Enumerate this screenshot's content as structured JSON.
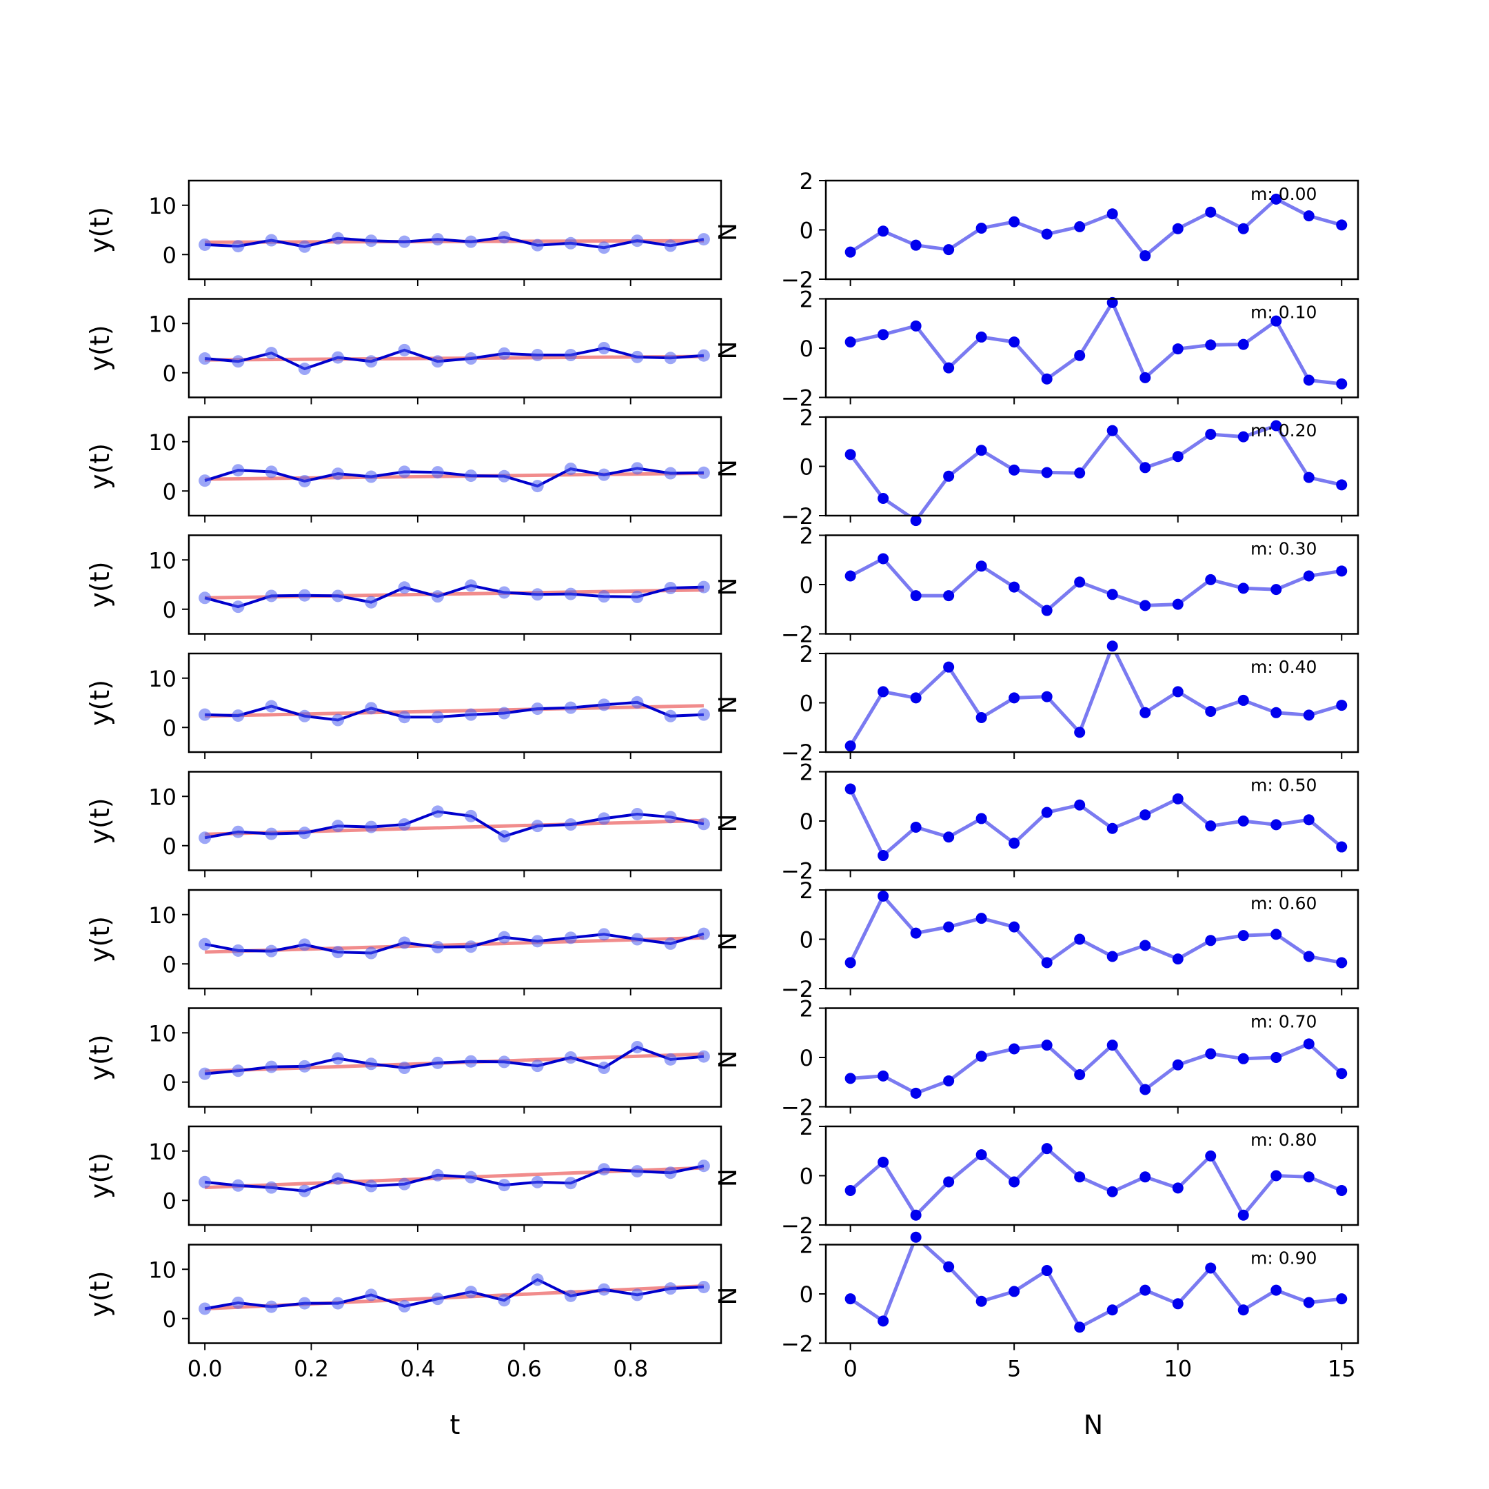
{
  "chart_data": {
    "type": "line",
    "layout": "10 rows x 2 columns of line/scatter subplots",
    "left": {
      "xlabel": "t",
      "ylabel": "y(t)",
      "xlim": [
        -0.03,
        0.97
      ],
      "ylim": [
        -5,
        15
      ],
      "xticks": [
        "0.0",
        "0.2",
        "0.4",
        "0.6",
        "0.8"
      ],
      "xtick_values": [
        0.0,
        0.2,
        0.4,
        0.6,
        0.8
      ],
      "yticks": [
        "0",
        "10"
      ],
      "ytick_values": [
        0,
        10
      ],
      "x": [
        0,
        0.0625,
        0.125,
        0.1875,
        0.25,
        0.3125,
        0.375,
        0.4375,
        0.5,
        0.5625,
        0.625,
        0.6875,
        0.75,
        0.8125,
        0.875,
        0.9375
      ],
      "series_style": {
        "data": "blue line with faded blue markers",
        "fit": "red translucent line"
      }
    },
    "right": {
      "xlabel": "N",
      "ylabel": "",
      "xlim": [
        -0.75,
        15.5
      ],
      "ylim": [
        -2,
        2
      ],
      "xticks": [
        "0",
        "5",
        "10",
        "15"
      ],
      "xtick_values": [
        0,
        5,
        10,
        15
      ],
      "yticks": [
        "−2",
        "0",
        "2"
      ],
      "ytick_values": [
        -2,
        0,
        2
      ],
      "x": [
        0,
        1,
        2,
        3,
        4,
        5,
        6,
        7,
        8,
        9,
        10,
        11,
        12,
        13,
        14,
        15
      ],
      "series_style": "faded blue line with solid blue markers"
    },
    "clipped_side_label": "N",
    "rows": [
      {
        "annotation": "m: 0.00",
        "y": [
          2.0,
          1.7,
          2.9,
          1.6,
          3.3,
          2.8,
          2.6,
          3.1,
          2.6,
          3.5,
          1.9,
          2.3,
          1.4,
          2.8,
          1.8,
          3.1
        ],
        "fit": [
          2.5,
          2.8
        ],
        "residuals": [
          -0.9,
          -0.05,
          -0.62,
          -0.8,
          0.07,
          0.33,
          -0.17,
          0.13,
          0.65,
          -1.05,
          0.05,
          0.72,
          0.05,
          1.25,
          0.57,
          0.2
        ]
      },
      {
        "annotation": "m: 0.10",
        "y": [
          2.9,
          2.3,
          4.0,
          0.8,
          3.1,
          2.3,
          4.6,
          2.3,
          2.9,
          3.9,
          3.6,
          3.6,
          5.0,
          3.2,
          3.0,
          3.5
        ],
        "fit": [
          2.6,
          3.3
        ],
        "residuals": [
          0.25,
          0.55,
          0.9,
          -0.8,
          0.45,
          0.25,
          -1.25,
          -0.3,
          1.85,
          -1.2,
          -0.03,
          0.13,
          0.15,
          1.1,
          -1.3,
          -1.45
        ]
      },
      {
        "annotation": "m: 0.20",
        "y": [
          2.1,
          4.2,
          3.9,
          2.0,
          3.5,
          2.9,
          3.9,
          3.8,
          3.1,
          3.0,
          1.0,
          4.5,
          3.3,
          4.6,
          3.6,
          3.7
        ],
        "fit": [
          2.4,
          3.6
        ],
        "residuals": [
          0.48,
          -1.3,
          -2.2,
          -0.4,
          0.65,
          -0.15,
          -0.25,
          -0.27,
          1.45,
          -0.05,
          0.4,
          1.3,
          1.2,
          1.65,
          -0.45,
          -0.75
        ]
      },
      {
        "annotation": "m: 0.30",
        "y": [
          2.3,
          0.5,
          2.7,
          2.8,
          2.7,
          1.4,
          4.4,
          2.6,
          4.8,
          3.4,
          3.0,
          3.1,
          2.6,
          2.5,
          4.3,
          4.5
        ],
        "fit": [
          2.3,
          3.9
        ],
        "residuals": [
          0.35,
          1.05,
          -0.45,
          -0.45,
          0.75,
          -0.1,
          -1.05,
          0.1,
          -0.4,
          -0.85,
          -0.8,
          0.2,
          -0.15,
          -0.2,
          0.35,
          0.55
        ]
      },
      {
        "annotation": "m: 0.40",
        "y": [
          2.6,
          2.4,
          4.3,
          2.3,
          1.5,
          3.9,
          2.1,
          2.1,
          2.6,
          2.9,
          3.8,
          4.0,
          4.6,
          5.1,
          2.3,
          2.6
        ],
        "fit": [
          2.3,
          4.4
        ],
        "residuals": [
          -1.75,
          0.45,
          0.2,
          1.45,
          -0.6,
          0.2,
          0.25,
          -1.2,
          2.3,
          -0.4,
          0.45,
          -0.35,
          0.1,
          -0.4,
          -0.5,
          -0.1
        ]
      },
      {
        "annotation": "m: 0.50",
        "y": [
          1.6,
          2.8,
          2.4,
          2.6,
          4.0,
          3.8,
          4.3,
          6.9,
          6.0,
          1.9,
          4.0,
          4.3,
          5.5,
          6.4,
          5.8,
          4.4
        ],
        "fit": [
          2.3,
          5.1
        ],
        "residuals": [
          1.3,
          -1.4,
          -0.25,
          -0.65,
          0.1,
          -0.9,
          0.35,
          0.65,
          -0.3,
          0.25,
          0.9,
          -0.2,
          0.0,
          -0.15,
          0.05,
          -1.05
        ]
      },
      {
        "annotation": "m: 0.60",
        "y": [
          4.0,
          2.7,
          2.6,
          3.9,
          2.4,
          2.2,
          4.3,
          3.4,
          3.5,
          5.4,
          4.6,
          5.3,
          6.0,
          5.0,
          4.1,
          6.1
        ],
        "fit": [
          2.4,
          5.3
        ],
        "residuals": [
          -0.95,
          1.75,
          0.25,
          0.5,
          0.85,
          0.5,
          -0.95,
          0.0,
          -0.7,
          -0.25,
          -0.8,
          -0.05,
          0.15,
          0.2,
          -0.7,
          -0.95
        ]
      },
      {
        "annotation": "m: 0.70",
        "y": [
          1.7,
          2.3,
          3.1,
          3.2,
          4.8,
          3.7,
          2.9,
          3.9,
          4.2,
          4.1,
          3.3,
          5.0,
          2.9,
          7.1,
          4.6,
          5.2
        ],
        "fit": [
          2.2,
          5.7
        ],
        "residuals": [
          -0.85,
          -0.75,
          -1.45,
          -0.95,
          0.05,
          0.35,
          0.5,
          -0.7,
          0.5,
          -1.3,
          -0.3,
          0.15,
          -0.05,
          0.0,
          0.55,
          -0.65
        ]
      },
      {
        "annotation": "m: 0.80",
        "y": [
          3.7,
          3.0,
          2.6,
          1.9,
          4.4,
          2.9,
          3.3,
          5.1,
          4.7,
          3.1,
          3.7,
          3.5,
          6.3,
          5.9,
          5.6,
          7.0
        ],
        "fit": [
          2.6,
          6.6
        ],
        "residuals": [
          -0.6,
          0.55,
          -1.6,
          -0.25,
          0.85,
          -0.25,
          1.1,
          -0.05,
          -0.65,
          -0.05,
          -0.5,
          0.8,
          -1.6,
          0.0,
          -0.05,
          -0.6
        ]
      },
      {
        "annotation": "m: 0.90",
        "y": [
          2.0,
          3.2,
          2.4,
          3.1,
          3.1,
          4.8,
          2.5,
          4.0,
          5.4,
          3.7,
          7.9,
          4.6,
          5.9,
          4.8,
          6.1,
          6.4
        ],
        "fit": [
          2.0,
          6.6
        ],
        "residuals": [
          -0.2,
          -1.1,
          2.3,
          1.1,
          -0.3,
          0.1,
          0.95,
          -1.35,
          -0.65,
          0.15,
          -0.4,
          1.05,
          -0.65,
          0.15,
          -0.35,
          -0.2
        ]
      }
    ]
  }
}
